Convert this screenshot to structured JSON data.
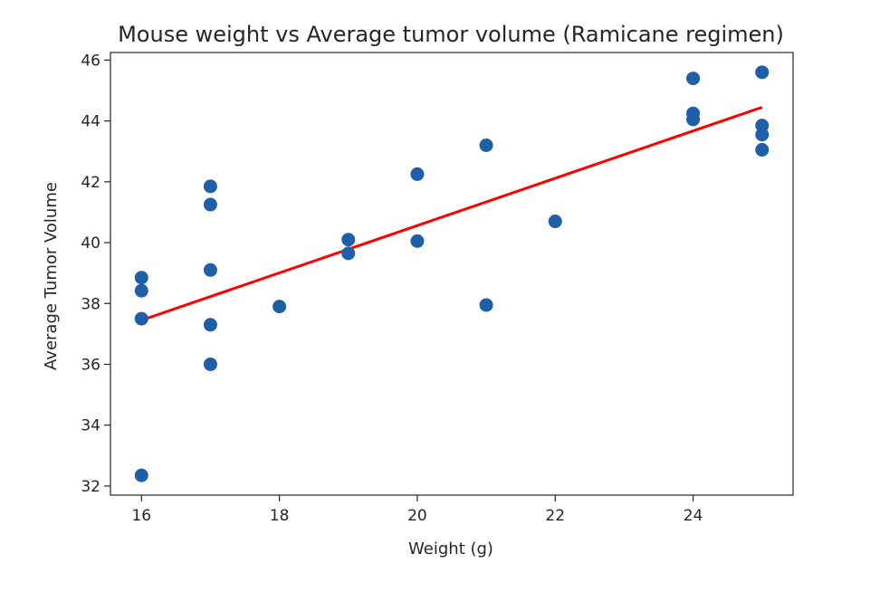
{
  "chart_data": {
    "type": "scatter",
    "title": "Mouse weight vs Average tumor volume (Ramicane regimen)",
    "xlabel": "Weight (g)",
    "ylabel": "Average Tumor Volume",
    "xlim": [
      15.55,
      25.45
    ],
    "ylim": [
      31.7,
      46.25
    ],
    "xticks": [
      16,
      18,
      20,
      22,
      24
    ],
    "yticks": [
      32,
      34,
      36,
      38,
      40,
      42,
      44,
      46
    ],
    "grid": false,
    "legend": false,
    "colors": {
      "points": "#1f5fa8",
      "fit_line": "#ff0000",
      "axes": "#262626"
    },
    "series": [
      {
        "type": "scatter",
        "points": [
          [
            16,
            38.85
          ],
          [
            16,
            38.42
          ],
          [
            16,
            37.5
          ],
          [
            16,
            32.35
          ],
          [
            17,
            41.85
          ],
          [
            17,
            41.25
          ],
          [
            17,
            39.1
          ],
          [
            17,
            37.3
          ],
          [
            17,
            36.0
          ],
          [
            18,
            37.9
          ],
          [
            19,
            40.1
          ],
          [
            19,
            39.65
          ],
          [
            20,
            42.25
          ],
          [
            20,
            40.05
          ],
          [
            21,
            43.2
          ],
          [
            21,
            37.95
          ],
          [
            22,
            40.7
          ],
          [
            24,
            45.4
          ],
          [
            24,
            44.25
          ],
          [
            24,
            44.05
          ],
          [
            25,
            45.6
          ],
          [
            25,
            43.85
          ],
          [
            25,
            43.55
          ],
          [
            25,
            43.05
          ]
        ]
      },
      {
        "type": "line",
        "points": [
          [
            16,
            37.45
          ],
          [
            25,
            44.45
          ]
        ]
      }
    ]
  }
}
